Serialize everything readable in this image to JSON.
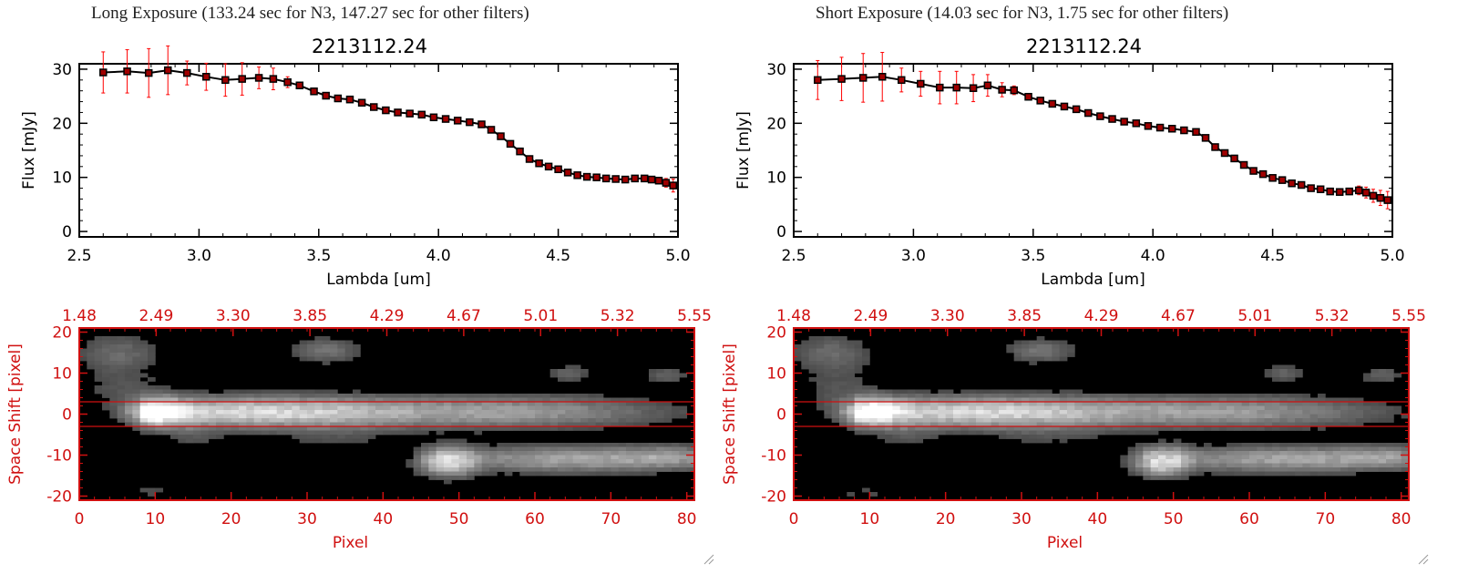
{
  "panels": [
    {
      "header": "Long Exposure (133.24 sec for N3, 147.27 sec for other filters)",
      "spectrum": {
        "type": "line",
        "title": "2213112.24",
        "xlabel": "Lambda [um]",
        "ylabel": "Flux [mJy]",
        "xlim": [
          2.5,
          5.0
        ],
        "ylim": [
          -1,
          31
        ],
        "xticks": [
          "2.5",
          "3.0",
          "3.5",
          "4.0",
          "4.5",
          "5.0"
        ],
        "yticks": [
          "0",
          "10",
          "20",
          "30"
        ],
        "series": [
          {
            "x": [
              2.6,
              2.7,
              2.79,
              2.87,
              2.95,
              3.03,
              3.11,
              3.18,
              3.25,
              3.31,
              3.37,
              3.42,
              3.48,
              3.53,
              3.58,
              3.63,
              3.68,
              3.73,
              3.78,
              3.83,
              3.88,
              3.93,
              3.98,
              4.03,
              4.08,
              4.13,
              4.18,
              4.22,
              4.26,
              4.3,
              4.34,
              4.38,
              4.42,
              4.46,
              4.5,
              4.54,
              4.58,
              4.62,
              4.66,
              4.7,
              4.74,
              4.78,
              4.82,
              4.86,
              4.89,
              4.92,
              4.95,
              4.98
            ],
            "y": [
              29.4,
              29.6,
              29.3,
              29.8,
              29.3,
              28.6,
              28.0,
              28.2,
              28.4,
              28.2,
              27.6,
              27.0,
              25.9,
              25.1,
              24.6,
              24.4,
              23.8,
              23.0,
              22.4,
              22.0,
              21.8,
              21.6,
              21.1,
              20.8,
              20.5,
              20.2,
              19.8,
              18.8,
              17.6,
              16.2,
              14.8,
              13.4,
              12.6,
              12.0,
              11.5,
              10.9,
              10.4,
              10.1,
              10.0,
              9.8,
              9.7,
              9.6,
              9.8,
              9.8,
              9.6,
              9.4,
              9.0,
              8.5
            ],
            "yerr": [
              3.8,
              4.0,
              4.5,
              4.5,
              2.2,
              2.5,
              3.0,
              3.0,
              2.0,
              2.0,
              1.0,
              0.6,
              0.5,
              0.4,
              0.4,
              0.4,
              0.4,
              0.4,
              0.4,
              0.4,
              0.4,
              0.4,
              0.4,
              0.4,
              0.4,
              0.4,
              0.4,
              0.4,
              0.4,
              0.4,
              0.4,
              0.4,
              0.4,
              0.4,
              0.4,
              0.4,
              0.4,
              0.4,
              0.4,
              0.4,
              0.4,
              0.4,
              0.4,
              0.4,
              0.4,
              0.6,
              0.8,
              1.2
            ]
          }
        ]
      },
      "image": {
        "type": "heatmap",
        "xlabel": "Pixel",
        "ylabel": "Space Shift [pixel]",
        "xlim": [
          0,
          81
        ],
        "ylim": [
          -21,
          21
        ],
        "xticks": [
          "0",
          "10",
          "20",
          "30",
          "40",
          "50",
          "60",
          "70",
          "80"
        ],
        "yticks": [
          "-20",
          "-10",
          "0",
          "10",
          "20"
        ],
        "top_ticks": [
          "1.48",
          "2.49",
          "3.30",
          "3.85",
          "4.29",
          "4.67",
          "5.01",
          "5.32",
          "5.55"
        ],
        "aperture": [
          -3,
          3
        ]
      }
    },
    {
      "header": "Short Exposure (14.03 sec for N3, 1.75 sec for other filters)",
      "spectrum": {
        "type": "line",
        "title": "2213112.24",
        "xlabel": "Lambda [um]",
        "ylabel": "Flux [mJy]",
        "xlim": [
          2.5,
          5.0
        ],
        "ylim": [
          -1,
          31
        ],
        "xticks": [
          "2.5",
          "3.0",
          "3.5",
          "4.0",
          "4.5",
          "5.0"
        ],
        "yticks": [
          "0",
          "10",
          "20",
          "30"
        ],
        "series": [
          {
            "x": [
              2.6,
              2.7,
              2.79,
              2.87,
              2.95,
              3.03,
              3.11,
              3.18,
              3.25,
              3.31,
              3.37,
              3.42,
              3.48,
              3.53,
              3.58,
              3.63,
              3.68,
              3.73,
              3.78,
              3.83,
              3.88,
              3.93,
              3.98,
              4.03,
              4.08,
              4.13,
              4.18,
              4.22,
              4.26,
              4.3,
              4.34,
              4.38,
              4.42,
              4.46,
              4.5,
              4.54,
              4.58,
              4.62,
              4.66,
              4.7,
              4.74,
              4.78,
              4.82,
              4.86,
              4.89,
              4.92,
              4.95,
              4.98
            ],
            "y": [
              28.0,
              28.2,
              28.4,
              28.6,
              28.0,
              27.3,
              26.6,
              26.6,
              26.5,
              27.0,
              26.2,
              26.1,
              24.9,
              24.2,
              23.6,
              23.1,
              22.6,
              21.9,
              21.3,
              20.8,
              20.3,
              20.0,
              19.5,
              19.2,
              19.0,
              18.7,
              18.4,
              17.3,
              15.6,
              14.5,
              13.5,
              12.3,
              11.2,
              10.6,
              9.9,
              9.5,
              8.9,
              8.6,
              8.0,
              7.8,
              7.4,
              7.3,
              7.4,
              7.6,
              7.2,
              6.6,
              6.2,
              5.8
            ],
            "yerr": [
              3.6,
              4.0,
              4.5,
              4.5,
              2.2,
              2.3,
              3.0,
              3.0,
              2.5,
              2.0,
              1.3,
              0.8,
              0.5,
              0.4,
              0.4,
              0.4,
              0.4,
              0.4,
              0.4,
              0.4,
              0.4,
              0.4,
              0.4,
              0.4,
              0.4,
              0.4,
              0.4,
              0.4,
              0.4,
              0.4,
              0.4,
              0.4,
              0.4,
              0.4,
              0.4,
              0.4,
              0.4,
              0.4,
              0.4,
              0.4,
              0.4,
              0.5,
              0.6,
              0.8,
              1.0,
              1.2,
              1.4,
              1.6
            ]
          }
        ]
      },
      "image": {
        "type": "heatmap",
        "xlabel": "Pixel",
        "ylabel": "Space Shift [pixel]",
        "xlim": [
          0,
          81
        ],
        "ylim": [
          -21,
          21
        ],
        "xticks": [
          "0",
          "10",
          "20",
          "30",
          "40",
          "50",
          "60",
          "70",
          "80"
        ],
        "yticks": [
          "-20",
          "-10",
          "0",
          "10",
          "20"
        ],
        "top_ticks": [
          "1.48",
          "2.49",
          "3.30",
          "3.85",
          "4.29",
          "4.67",
          "5.01",
          "5.32",
          "5.55"
        ],
        "aperture": [
          -3,
          3
        ]
      }
    }
  ],
  "colors": {
    "axes": "#000000",
    "marker": "#a00000",
    "errorbar": "#ff0000",
    "image_axes": "#d01010",
    "aperture_line": "#d01010"
  }
}
